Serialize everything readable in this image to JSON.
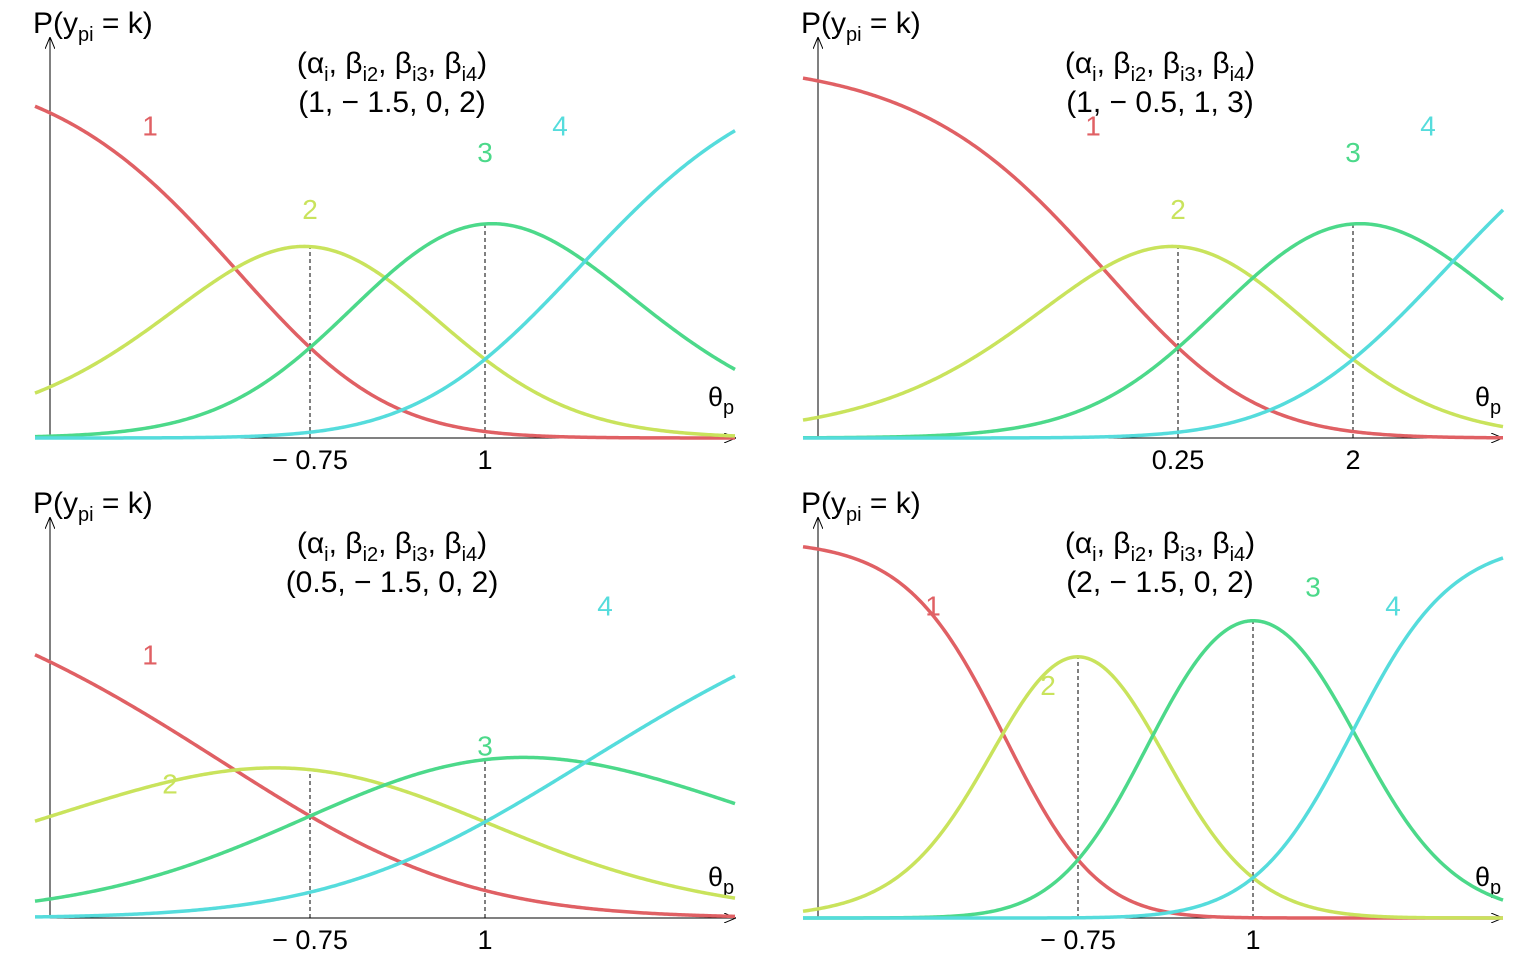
{
  "chart_data": [
    {
      "type": "line",
      "y_label": "P(y_pi = k)",
      "x_label": "θ_p",
      "x_range": [
        -3.5,
        3.5
      ],
      "ylim": [
        0,
        1
      ],
      "parameter_header": "(α_i, β_i2, β_i3, β_i4)",
      "parameter_values": "(1, − 1.5, 0, 2)",
      "alpha": 1,
      "betas": [
        -1.5,
        0,
        2
      ],
      "ticks": [
        {
          "x": -0.75,
          "label": "− 0.75"
        },
        {
          "x": 1,
          "label": "1"
        }
      ],
      "series": [
        {
          "name": "1",
          "category": 1
        },
        {
          "name": "2",
          "category": 2
        },
        {
          "name": "3",
          "category": 3
        },
        {
          "name": "4",
          "category": 4
        }
      ]
    },
    {
      "type": "line",
      "y_label": "P(y_pi = k)",
      "x_label": "θ_p",
      "x_range": [
        -3.5,
        3.5
      ],
      "ylim": [
        0,
        1
      ],
      "parameter_header": "(α_i, β_i2, β_i3, β_i4)",
      "parameter_values": "(1, − 0.5, 1, 3)",
      "alpha": 1,
      "betas": [
        -0.5,
        1,
        3
      ],
      "ticks": [
        {
          "x": 0.25,
          "label": "0.25"
        },
        {
          "x": 2,
          "label": "2"
        }
      ],
      "series": [
        {
          "name": "1",
          "category": 1
        },
        {
          "name": "2",
          "category": 2
        },
        {
          "name": "3",
          "category": 3
        },
        {
          "name": "4",
          "category": 4
        }
      ]
    },
    {
      "type": "line",
      "y_label": "P(y_pi = k)",
      "x_label": "θ_p",
      "x_range": [
        -3.5,
        3.5
      ],
      "ylim": [
        0,
        1
      ],
      "parameter_header": "(α_i, β_i2, β_i3, β_i4)",
      "parameter_values": "(0.5, − 1.5, 0, 2)",
      "alpha": 0.5,
      "betas": [
        -1.5,
        0,
        2
      ],
      "ticks": [
        {
          "x": -0.75,
          "label": "− 0.75"
        },
        {
          "x": 1,
          "label": "1"
        }
      ],
      "series": [
        {
          "name": "1",
          "category": 1
        },
        {
          "name": "2",
          "category": 2
        },
        {
          "name": "3",
          "category": 3
        },
        {
          "name": "4",
          "category": 4
        }
      ]
    },
    {
      "type": "line",
      "y_label": "P(y_pi = k)",
      "x_label": "θ_p",
      "x_range": [
        -3.5,
        3.5
      ],
      "ylim": [
        0,
        1
      ],
      "parameter_header": "(α_i, β_i2, β_i3, β_i4)",
      "parameter_values": "(2, − 1.5, 0, 2)",
      "alpha": 2,
      "betas": [
        -1.5,
        0,
        2
      ],
      "ticks": [
        {
          "x": -0.75,
          "label": "− 0.75"
        },
        {
          "x": 1,
          "label": "1"
        }
      ],
      "series": [
        {
          "name": "1",
          "category": 1
        },
        {
          "name": "2",
          "category": 2
        },
        {
          "name": "3",
          "category": 3
        },
        {
          "name": "4",
          "category": 4
        }
      ]
    }
  ],
  "colors": {
    "1": "#E06064",
    "2": "#C9E35C",
    "3": "#4CD98A",
    "4": "#55DCDC"
  },
  "text": {
    "y_label_main": "P(y",
    "y_label_sub": "pi",
    "y_label_end": " = k)",
    "x_label_main": "θ",
    "x_label_sub": "p",
    "formula_open": "(α",
    "formula_alpha_sub": "i",
    "formula_b2": ", β",
    "formula_b2_sub": "i2",
    "formula_b3": ", β",
    "formula_b3_sub": "i3",
    "formula_b4": ", β",
    "formula_b4_sub": "i4",
    "formula_close": ")"
  }
}
